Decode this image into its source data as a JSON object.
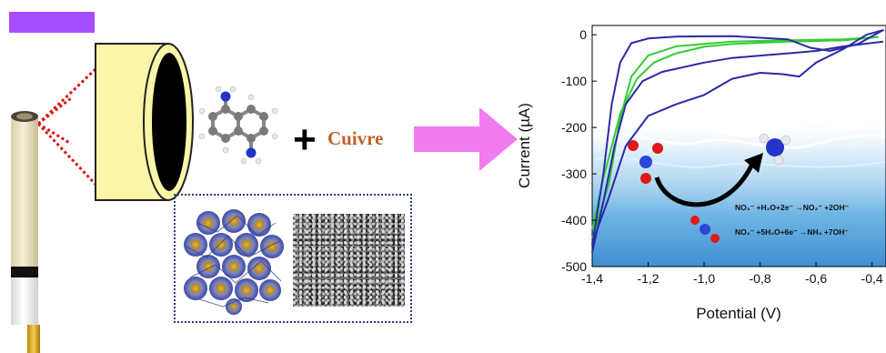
{
  "reagent": {
    "word": "Cuivre",
    "color": "#c0622b"
  },
  "equations": {
    "eq1": "NO₃⁻ +H₂O+2e⁻ →NO₂⁻ +2OH⁻",
    "eq2": "NO₂⁻ +5H₂O+6e⁻ →NH₃ +7OH⁻"
  },
  "colors": {
    "label_block": "#a64dff",
    "electrode_cap": "#fbf5a8",
    "arrow": "#f07cf0",
    "curve_green": "#33cc33",
    "curve_blue": "#2a2aa8"
  },
  "chart_data": {
    "type": "line",
    "xlabel": "Potential (V)",
    "ylabel": "Current (µA)",
    "xlim": [
      -1.4,
      -0.35
    ],
    "ylim": [
      -500,
      20
    ],
    "x_ticks": [
      "-1,4",
      "-1,2",
      "-1,0",
      "-0,8",
      "-0,6",
      "-0,4"
    ],
    "y_ticks": [
      "0",
      "-100",
      "-200",
      "-300",
      "-400",
      "-500"
    ],
    "series": [
      {
        "color": "#33cc33",
        "x": [
          -1.4,
          -1.34,
          -1.3,
          -1.26,
          -1.2,
          -1.1,
          -0.9,
          -0.7,
          -0.5,
          -0.38,
          -0.5,
          -0.7,
          -0.9,
          -1.0,
          -1.1,
          -1.18,
          -1.24,
          -1.3,
          -1.36,
          -1.4
        ],
        "y": [
          -440,
          -320,
          -180,
          -90,
          -45,
          -25,
          -15,
          -12,
          -10,
          -5,
          -12,
          -15,
          -20,
          -26,
          -40,
          -60,
          -95,
          -170,
          -310,
          -420
        ]
      },
      {
        "color": "#2a2aa8",
        "x": [
          -1.4,
          -1.36,
          -1.33,
          -1.3,
          -1.26,
          -1.2,
          -1.1,
          -0.9,
          -0.7,
          -0.62,
          -0.55,
          -0.45,
          -0.36,
          -0.42,
          -0.5,
          -0.6,
          -0.66,
          -0.72,
          -0.8,
          -0.9,
          -1.0,
          -1.1,
          -1.2,
          -1.28,
          -1.34,
          -1.4
        ],
        "y": [
          -455,
          -300,
          -150,
          -60,
          -18,
          -8,
          -4,
          -3,
          -10,
          -28,
          -35,
          -20,
          10,
          0,
          -30,
          -60,
          -90,
          -85,
          -82,
          -95,
          -130,
          -150,
          -175,
          -240,
          -350,
          -450
        ]
      },
      {
        "color": "#2a2aa8",
        "x": [
          -1.4,
          -1.36,
          -1.32,
          -1.28,
          -1.22,
          -1.15,
          -1.0,
          -0.9,
          -0.8,
          -0.7,
          -0.6,
          -0.5,
          -0.36
        ],
        "y": [
          -470,
          -360,
          -240,
          -150,
          -100,
          -80,
          -60,
          -50,
          -45,
          -40,
          -35,
          -25,
          -15
        ]
      }
    ]
  }
}
